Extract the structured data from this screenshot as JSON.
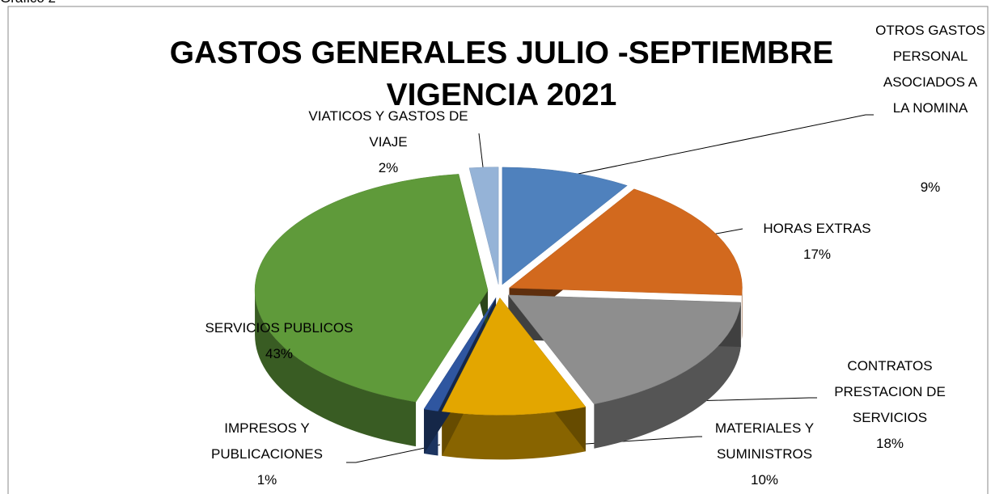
{
  "caption": "Grafico 2",
  "chart_data": {
    "type": "pie3d",
    "title": "GASTOS GENERALES  JULIO -SEPTIEMBRE VIGENCIA 2021",
    "categories": [
      "OTROS GASTOS PERSONAL ASOCIADOS A LA NOMINA",
      "HORAS EXTRAS",
      "CONTRATOS PRESTACION DE SERVICIOS",
      "MATERIALES Y SUMINISTROS",
      "IMPRESOS Y PUBLICACIONES",
      "SERVICIOS PUBLICOS",
      "VIATICOS Y GASTOS DE VIAJE"
    ],
    "values": [
      9,
      17,
      18,
      10,
      1,
      43,
      2
    ],
    "value_labels": [
      "9%",
      "17%",
      "18%",
      "10%",
      "1%",
      "43%",
      "2%"
    ],
    "colors": [
      "#4f81bd",
      "#d2691e",
      "#8e8e8e",
      "#e3a600",
      "#2f56a0",
      "#5f9a3a",
      "#95b3d7"
    ]
  }
}
